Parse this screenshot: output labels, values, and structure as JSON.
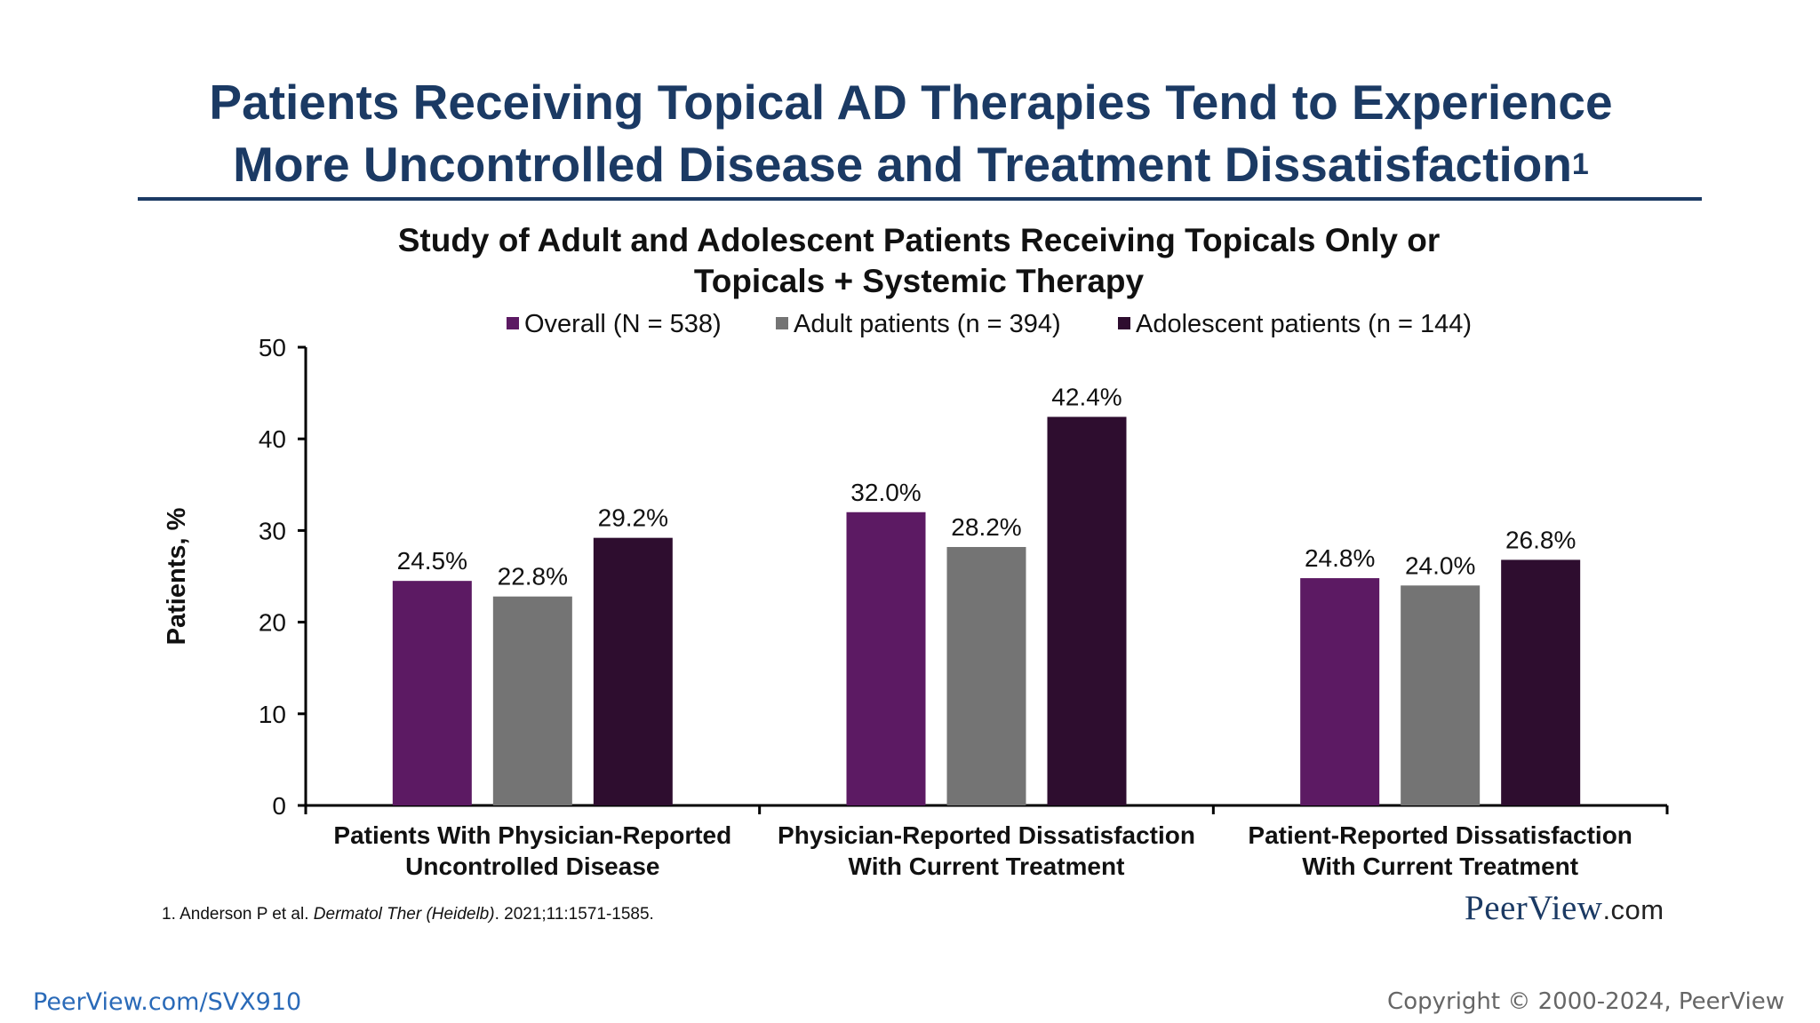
{
  "slide": {
    "title_line1": "Patients Receiving Topical AD Therapies Tend to Experience",
    "title_line2": "More Uncontrolled Disease and Treatment Dissatisfaction",
    "title_superscript": "1"
  },
  "chart_data": {
    "type": "bar",
    "title_line1": "Study of Adult and Adolescent Patients Receiving Topicals Only or",
    "title_line2": "Topicals + Systemic Therapy",
    "ylabel": "Patients, %",
    "xlabel": "",
    "ylim": [
      0,
      50
    ],
    "yticks": [
      0,
      10,
      20,
      30,
      40,
      50
    ],
    "legend_position": "top",
    "grid": false,
    "categories": [
      [
        "Patients With Physician-Reported",
        "Uncontrolled Disease"
      ],
      [
        "Physician-Reported Dissatisfaction",
        "With Current Treatment"
      ],
      [
        "Patient-Reported Dissatisfaction",
        "With Current Treatment"
      ]
    ],
    "series": [
      {
        "name": "Overall (N = 538)",
        "color": "#5c1a63",
        "values": [
          24.5,
          32.0,
          24.8
        ],
        "labels": [
          "24.5%",
          "32.0%",
          "24.8%"
        ]
      },
      {
        "name": "Adult patients (n = 394)",
        "color": "#747474",
        "values": [
          22.8,
          28.2,
          24.0
        ],
        "labels": [
          "22.8%",
          "28.2%",
          "24.0%"
        ]
      },
      {
        "name": "Adolescent patients (n = 144)",
        "color": "#2e0d2f",
        "values": [
          29.2,
          42.4,
          26.8
        ],
        "labels": [
          "29.2%",
          "42.4%",
          "26.8%"
        ]
      }
    ]
  },
  "footnote": {
    "prefix": "1. Anderson P et al. ",
    "journal": "Dermatol Ther (Heidelb)",
    "suffix": ". 2021;11:1571-1585."
  },
  "logo": {
    "main": "PeerView",
    "suffix": ".com"
  },
  "footer": {
    "link": "PeerView.com/SVX910",
    "copyright": "Copyright © 2000-2024, PeerView"
  }
}
